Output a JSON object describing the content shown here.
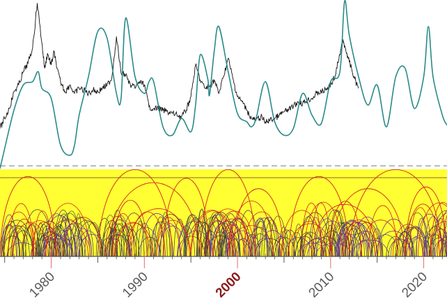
{
  "chart_data": {
    "type": "line",
    "title": "",
    "xlabel": "",
    "ylabel": "",
    "xlim": [
      1974.5,
      2022.5
    ],
    "highlight_year": "2000",
    "x_tick_labels": [
      "1980",
      "1990",
      "2000",
      "2010",
      "2020"
    ],
    "colors": {
      "price_line": "#111111",
      "cycle_model": "#2a8a8a",
      "band_fill": "#ffff33",
      "arcs_red": "#cc2222",
      "arcs_purple": "#6a3d9a",
      "arcs_dark": "#3a3a3a",
      "highlight_label": "#8b1a1a",
      "dashed_line": "#777777"
    },
    "series": [
      {
        "key": "price",
        "x": [
          1974.5,
          1975,
          1975.5,
          1976,
          1976.5,
          1977,
          1977.5,
          1978,
          1978.5,
          1979,
          1979.3,
          1979.6,
          1980,
          1980.3,
          1980.6,
          1981,
          1981.5,
          1982,
          1982.5,
          1983,
          1983.5,
          1984,
          1984.5,
          1985,
          1985.5,
          1986,
          1986.5,
          1987,
          1987.5,
          1988,
          1988.5,
          1989,
          1989.5,
          1990,
          1990.5,
          1991,
          1991.5,
          1992,
          1992.5,
          1993,
          1993.5,
          1994,
          1994.5,
          1995,
          1995.5,
          1996,
          1996.5,
          1997,
          1997.5,
          1998,
          1998.5,
          1999,
          1999.5,
          2000,
          2000.5,
          2001,
          2001.5,
          2002,
          2002.5,
          2003,
          2003.5,
          2004,
          2004.5,
          2005,
          2005.5,
          2006,
          2006.5,
          2007,
          2007.5,
          2008,
          2008.5,
          2009,
          2009.5,
          2010,
          2010.5,
          2011,
          2011.3,
          2011.6,
          2012,
          2012.5,
          2013
        ],
        "y": [
          0.24,
          0.3,
          0.36,
          0.46,
          0.5,
          0.58,
          0.63,
          0.72,
          0.99,
          0.75,
          0.6,
          0.69,
          0.62,
          0.7,
          0.6,
          0.52,
          0.46,
          0.5,
          0.45,
          0.48,
          0.47,
          0.45,
          0.47,
          0.46,
          0.48,
          0.5,
          0.54,
          0.79,
          0.57,
          0.56,
          0.5,
          0.48,
          0.52,
          0.5,
          0.37,
          0.36,
          0.36,
          0.35,
          0.34,
          0.33,
          0.32,
          0.31,
          0.35,
          0.43,
          0.62,
          0.53,
          0.48,
          0.49,
          0.53,
          0.45,
          0.55,
          0.66,
          0.54,
          0.43,
          0.4,
          0.35,
          0.3,
          0.29,
          0.31,
          0.28,
          0.29,
          0.3,
          0.32,
          0.34,
          0.35,
          0.37,
          0.4,
          0.39,
          0.41,
          0.42,
          0.45,
          0.46,
          0.47,
          0.5,
          0.56,
          0.68,
          0.76,
          0.72,
          0.64,
          0.55,
          0.48
        ]
      },
      {
        "key": "cycle_model",
        "x": [
          1974.5,
          1975,
          1976,
          1977,
          1978,
          1978.6,
          1979,
          1980,
          1981,
          1982,
          1982.5,
          1983,
          1984,
          1985,
          1986,
          1987,
          1987.5,
          1988,
          1989,
          1990,
          1990.5,
          1991,
          1992,
          1993,
          1994,
          1995,
          1995.5,
          1996,
          1996.8,
          1997,
          1997.5,
          1998,
          1999,
          2000,
          2001,
          2001.5,
          2002,
          2003,
          2004,
          2005,
          2006,
          2007,
          2008,
          2009,
          2010,
          2011,
          2011.5,
          2012,
          2013,
          2014,
          2015,
          2016,
          2017,
          2018,
          2019,
          2020,
          2020.5,
          2021,
          2022,
          2022.5
        ],
        "y": [
          0.0,
          0.12,
          0.35,
          0.5,
          0.52,
          0.58,
          0.48,
          0.42,
          0.14,
          0.08,
          0.14,
          0.32,
          0.55,
          0.82,
          0.78,
          0.45,
          0.42,
          0.9,
          0.55,
          0.45,
          0.52,
          0.52,
          0.25,
          0.2,
          0.3,
          0.22,
          0.38,
          0.68,
          0.54,
          0.44,
          0.7,
          0.85,
          0.58,
          0.33,
          0.28,
          0.25,
          0.3,
          0.52,
          0.28,
          0.2,
          0.24,
          0.45,
          0.32,
          0.27,
          0.52,
          0.58,
          1.0,
          0.8,
          0.55,
          0.38,
          0.5,
          0.25,
          0.55,
          0.6,
          0.36,
          0.55,
          0.85,
          0.55,
          0.32,
          0.26
        ]
      }
    ],
    "cycle_arcs": {
      "red_large": [
        [
          1974.5,
          1980.5,
          0.92
        ],
        [
          1985,
          1993,
          1.0
        ],
        [
          1986,
          1996,
          0.85
        ],
        [
          1992,
          1997,
          0.9
        ],
        [
          1996,
          2002,
          1.0
        ],
        [
          1999.5,
          2005,
          0.78
        ],
        [
          2005.5,
          2012,
          0.92
        ],
        [
          2010,
          2018,
          0.78
        ],
        [
          2012,
          2022,
          1.0
        ],
        [
          2018,
          2022.5,
          0.8
        ],
        [
          1988,
          1995,
          0.55
        ],
        [
          2008,
          2015,
          0.6
        ]
      ],
      "red_small_count": 48,
      "purple_count": 80,
      "dark_count": 160
    }
  }
}
